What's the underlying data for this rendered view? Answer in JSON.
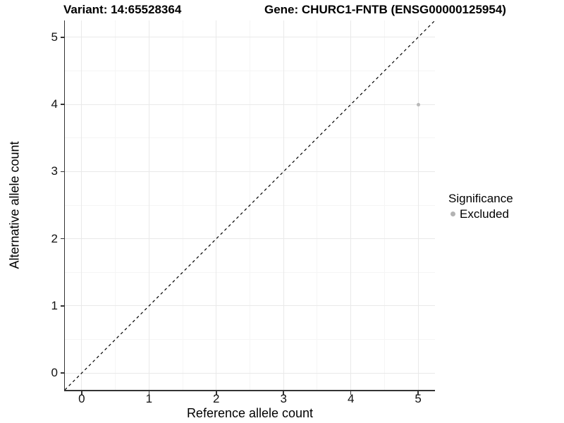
{
  "chart_data": {
    "type": "scatter",
    "title_left": "Variant: 14:65528364",
    "title_right": "Gene: CHURC1-FNTB (ENSG00000125954)",
    "xlabel": "Reference allele count",
    "ylabel": "Alternative allele count",
    "xlim": [
      -0.25,
      5.25
    ],
    "ylim": [
      -0.25,
      5.25
    ],
    "x_ticks": [
      0,
      1,
      2,
      3,
      4,
      5
    ],
    "y_ticks": [
      0,
      1,
      2,
      3,
      4,
      5
    ],
    "x_minor_ticks": [
      0.5,
      1.5,
      2.5,
      3.5,
      4.5
    ],
    "y_minor_ticks": [
      0.5,
      1.5,
      2.5,
      3.5,
      4.5
    ],
    "grid": true,
    "legend_position": "right",
    "identity_line": {
      "shown": true,
      "style": "dashed",
      "color": "#000000"
    },
    "series": [
      {
        "name": "Excluded",
        "color": "#b9b9b9",
        "points": [
          {
            "x": 5,
            "y": 4
          }
        ]
      }
    ],
    "legend": {
      "title": "Significance",
      "entries": [
        {
          "label": "Excluded",
          "color": "#b3b3b3"
        }
      ]
    }
  },
  "colors": {
    "background": "#ffffff",
    "grid_major": "#e9e9e9",
    "grid_minor": "#f5f5f5",
    "axis": "#333333",
    "tick_text": "#111111",
    "text": "#000000"
  }
}
